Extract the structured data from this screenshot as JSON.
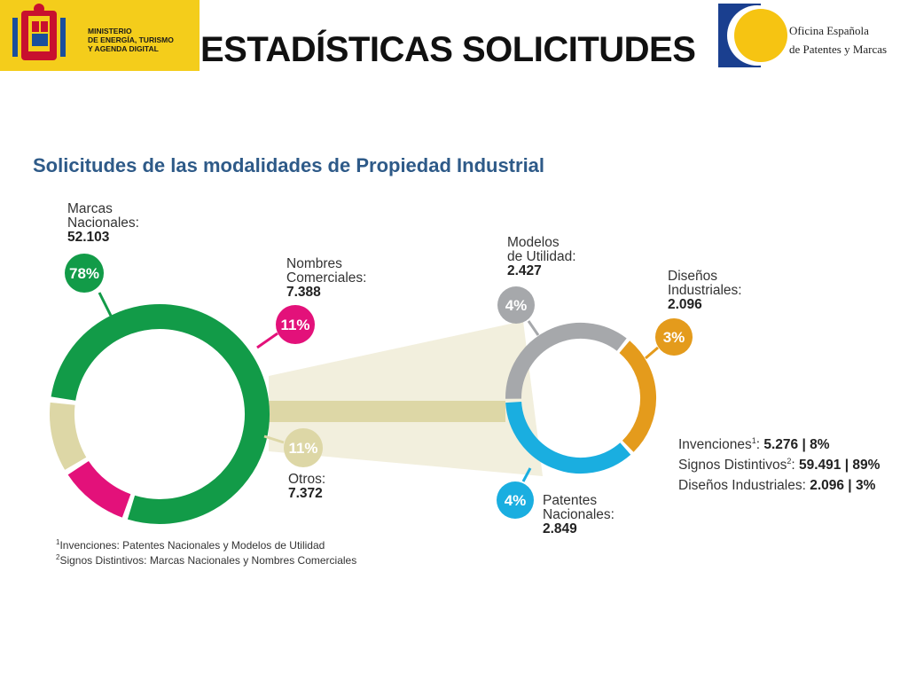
{
  "header": {
    "ministry_lines": [
      "MINISTERIO",
      "DE ENERGÍA, TURISMO",
      "Y AGENDA DIGITAL"
    ],
    "title": "ESTADÍSTICAS SOLICITUDES",
    "oepm_lines": [
      "Oficina Española",
      "de Patentes y Marcas"
    ]
  },
  "colors": {
    "green": "#129b48",
    "magenta": "#e3117a",
    "beige": "#ddd7a6",
    "grey": "#a6a8ab",
    "orange": "#e49b1c",
    "cyan": "#1aaee0"
  },
  "chart_data": [
    {
      "type": "pie",
      "title": "Solicitudes de las modalidades de Propiedad Industrial",
      "slices": [
        {
          "name_lines": [
            "Marcas",
            "Nacionales:"
          ],
          "value": "52.103",
          "percent": 78,
          "percent_label": "78%",
          "color": "#129b48"
        },
        {
          "name_lines": [
            "Nombres",
            "Comerciales:"
          ],
          "value": "7.388",
          "percent": 11,
          "percent_label": "11%",
          "color": "#e3117a"
        },
        {
          "name_lines": [
            "Otros:"
          ],
          "value": "7.372",
          "percent": 11,
          "percent_label": "11%",
          "color": "#ddd7a6"
        }
      ]
    },
    {
      "type": "pie",
      "slices": [
        {
          "name_lines": [
            "Modelos",
            "de Utilidad:"
          ],
          "value": "2.427",
          "percent": 4,
          "percent_label": "4%",
          "color": "#a6a8ab"
        },
        {
          "name_lines": [
            "Diseños",
            "Industriales:"
          ],
          "value": "2.096",
          "percent": 3,
          "percent_label": "3%",
          "color": "#e49b1c"
        },
        {
          "name_lines": [
            "Patentes",
            "Nacionales:"
          ],
          "value": "2.849",
          "percent": 4,
          "percent_label": "4%",
          "color": "#1aaee0"
        }
      ]
    }
  ],
  "legend": [
    {
      "label": "Invenciones",
      "sup": "1",
      "value": "5.276",
      "share": "8%"
    },
    {
      "label": "Signos Distintivos",
      "sup": "2",
      "value": "59.491",
      "share": "89%"
    },
    {
      "label": "Diseños Industriales",
      "sup": "",
      "value": "2.096",
      "share": "3%"
    }
  ],
  "footnotes": [
    {
      "sup": "1",
      "text": "Invenciones: Patentes Nacionales y Modelos de Utilidad"
    },
    {
      "sup": "2",
      "text": "Signos Distintivos: Marcas Nacionales y Nombres Comerciales"
    }
  ]
}
